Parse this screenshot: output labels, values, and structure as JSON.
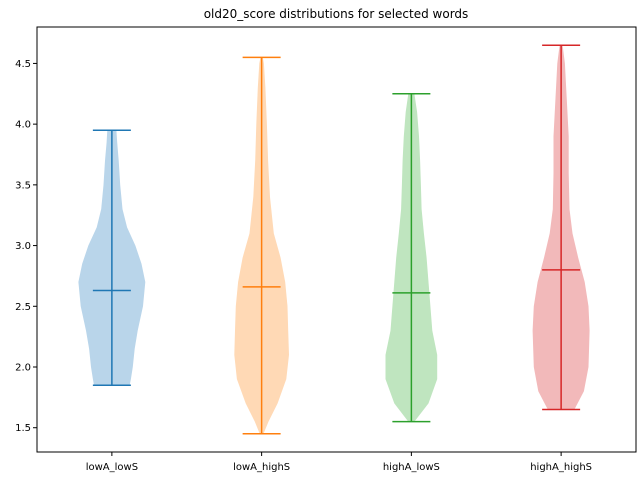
{
  "chart_data": {
    "type": "violin",
    "title": "old20_score distributions for selected words",
    "xlabel": "",
    "ylabel": "",
    "ylim": [
      1.3,
      4.8
    ],
    "yticks": [
      "1.5",
      "2.0",
      "2.5",
      "3.0",
      "3.5",
      "4.0",
      "4.5"
    ],
    "ytick_values": [
      1.5,
      2.0,
      2.5,
      3.0,
      3.5,
      4.0,
      4.5
    ],
    "grid": false,
    "series": [
      {
        "name": "lowA_lowS",
        "color": "#1f77b4",
        "fill": "#b9d5ea",
        "min": 1.85,
        "max": 3.95,
        "median": 2.63,
        "density": [
          [
            1.85,
            0.47
          ],
          [
            1.9,
            0.5
          ],
          [
            2.0,
            0.55
          ],
          [
            2.15,
            0.6
          ],
          [
            2.3,
            0.68
          ],
          [
            2.5,
            0.82
          ],
          [
            2.7,
            0.88
          ],
          [
            2.85,
            0.78
          ],
          [
            3.0,
            0.62
          ],
          [
            3.15,
            0.4
          ],
          [
            3.3,
            0.28
          ],
          [
            3.5,
            0.22
          ],
          [
            3.7,
            0.18
          ],
          [
            3.85,
            0.14
          ],
          [
            3.95,
            0.12
          ]
        ]
      },
      {
        "name": "lowA_highS",
        "color": "#ff7f0e",
        "fill": "#ffd9b5",
        "min": 1.45,
        "max": 4.55,
        "median": 2.66,
        "density": [
          [
            1.45,
            0.05
          ],
          [
            1.55,
            0.18
          ],
          [
            1.7,
            0.42
          ],
          [
            1.9,
            0.65
          ],
          [
            2.1,
            0.72
          ],
          [
            2.3,
            0.7
          ],
          [
            2.5,
            0.68
          ],
          [
            2.7,
            0.62
          ],
          [
            2.9,
            0.5
          ],
          [
            3.1,
            0.32
          ],
          [
            3.4,
            0.22
          ],
          [
            3.7,
            0.17
          ],
          [
            4.0,
            0.14
          ],
          [
            4.3,
            0.1
          ],
          [
            4.5,
            0.06
          ],
          [
            4.55,
            0.03
          ]
        ]
      },
      {
        "name": "highA_lowS",
        "color": "#2ca02c",
        "fill": "#bfe5bf",
        "min": 1.55,
        "max": 4.25,
        "median": 2.61,
        "density": [
          [
            1.55,
            0.08
          ],
          [
            1.7,
            0.45
          ],
          [
            1.9,
            0.68
          ],
          [
            2.1,
            0.68
          ],
          [
            2.3,
            0.55
          ],
          [
            2.5,
            0.5
          ],
          [
            2.7,
            0.45
          ],
          [
            2.9,
            0.4
          ],
          [
            3.1,
            0.33
          ],
          [
            3.3,
            0.27
          ],
          [
            3.5,
            0.25
          ],
          [
            3.7,
            0.23
          ],
          [
            3.9,
            0.2
          ],
          [
            4.1,
            0.15
          ],
          [
            4.25,
            0.08
          ]
        ]
      },
      {
        "name": "highA_highS",
        "color": "#d62728",
        "fill": "#f2b9ba",
        "min": 1.65,
        "max": 4.65,
        "median": 2.8,
        "density": [
          [
            1.65,
            0.35
          ],
          [
            1.8,
            0.6
          ],
          [
            2.0,
            0.72
          ],
          [
            2.3,
            0.75
          ],
          [
            2.5,
            0.72
          ],
          [
            2.7,
            0.62
          ],
          [
            2.9,
            0.45
          ],
          [
            3.1,
            0.3
          ],
          [
            3.3,
            0.22
          ],
          [
            3.6,
            0.2
          ],
          [
            3.9,
            0.2
          ],
          [
            4.2,
            0.15
          ],
          [
            4.5,
            0.1
          ],
          [
            4.65,
            0.04
          ]
        ]
      }
    ]
  }
}
